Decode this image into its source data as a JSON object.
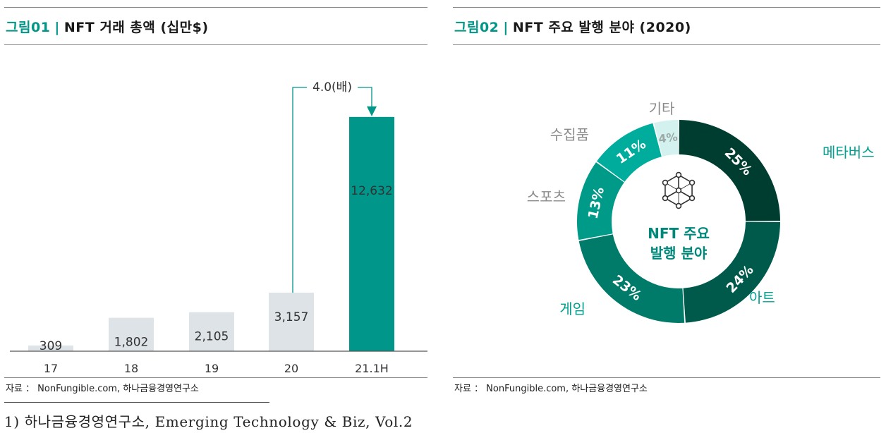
{
  "left": {
    "fig_num": "그림01",
    "sep": "|",
    "title": "NFT 거래 총액 (십만$)",
    "source": "자료 ： NonFungible.com, 하나금융경영연구소"
  },
  "right": {
    "fig_num": "그림02",
    "sep": "|",
    "title": "NFT 주요 발행 분야 (2020)",
    "source": "자료 ： NonFungible.com, 하나금융경영연구소"
  },
  "footnote": "1) 하나금융경영연구소, Emerging Technology & Biz, Vol.2",
  "colors": {
    "accent": "#009688",
    "bar_grey": "#dde3e6",
    "bar_teal": "#00968a"
  },
  "chart_data": [
    {
      "type": "bar",
      "title": "NFT 거래 총액 (십만$)",
      "categories": [
        "17",
        "18",
        "19",
        "20",
        "21.1H"
      ],
      "values": [
        309,
        1802,
        2105,
        3157,
        12632
      ],
      "labels": [
        "309",
        "1,802",
        "2,105",
        "3,157",
        "12,632"
      ],
      "ylim": [
        0,
        13500
      ],
      "annotation": "4.0(배)",
      "annotation_from": "20",
      "annotation_to": "21.1H",
      "xlabel": "",
      "ylabel": ""
    },
    {
      "type": "pie",
      "variant": "donut",
      "title": "NFT 주요 발행 분야 (2020)",
      "center_label": [
        "NFT 주요",
        "발행 분야"
      ],
      "slices": [
        {
          "name": "메타버스",
          "value": 25,
          "label": "25%",
          "color": "#003d31"
        },
        {
          "name": "아트",
          "value": 24,
          "label": "24%",
          "color": "#005a4c"
        },
        {
          "name": "게임",
          "value": 23,
          "label": "23%",
          "color": "#007a69"
        },
        {
          "name": "스포츠",
          "value": 13,
          "label": "13%",
          "color": "#009a89"
        },
        {
          "name": "수집품",
          "value": 11,
          "label": "11%",
          "color": "#00ad9c"
        },
        {
          "name": "기타",
          "value": 4,
          "label": "4%",
          "color": "#d3f2ef"
        }
      ]
    }
  ]
}
